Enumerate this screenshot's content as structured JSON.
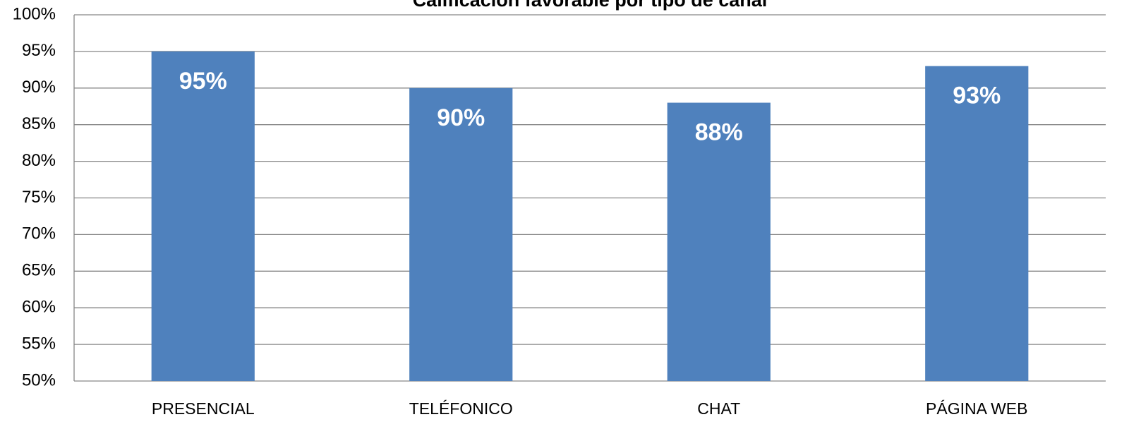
{
  "chart_data": {
    "type": "bar",
    "title": "Calificación favorable por tipo de canal",
    "categories": [
      "PRESENCIAL",
      "TELÉFONICO",
      "CHAT",
      "PÁGINA WEB"
    ],
    "values": [
      95,
      90,
      88,
      93
    ],
    "value_labels": [
      "95%",
      "90%",
      "88%",
      "93%"
    ],
    "color": "#4f81bd",
    "ylim": [
      50,
      100
    ],
    "yticks": [
      {
        "value": 50,
        "label": "50%"
      },
      {
        "value": 55,
        "label": "55%"
      },
      {
        "value": 60,
        "label": "60%"
      },
      {
        "value": 65,
        "label": "65%"
      },
      {
        "value": 70,
        "label": "70%"
      },
      {
        "value": 75,
        "label": "75%"
      },
      {
        "value": 80,
        "label": "80%"
      },
      {
        "value": 85,
        "label": "85%"
      },
      {
        "value": 90,
        "label": "90%"
      },
      {
        "value": 95,
        "label": "95%"
      },
      {
        "value": 100,
        "label": "100%"
      }
    ],
    "grid": true
  }
}
